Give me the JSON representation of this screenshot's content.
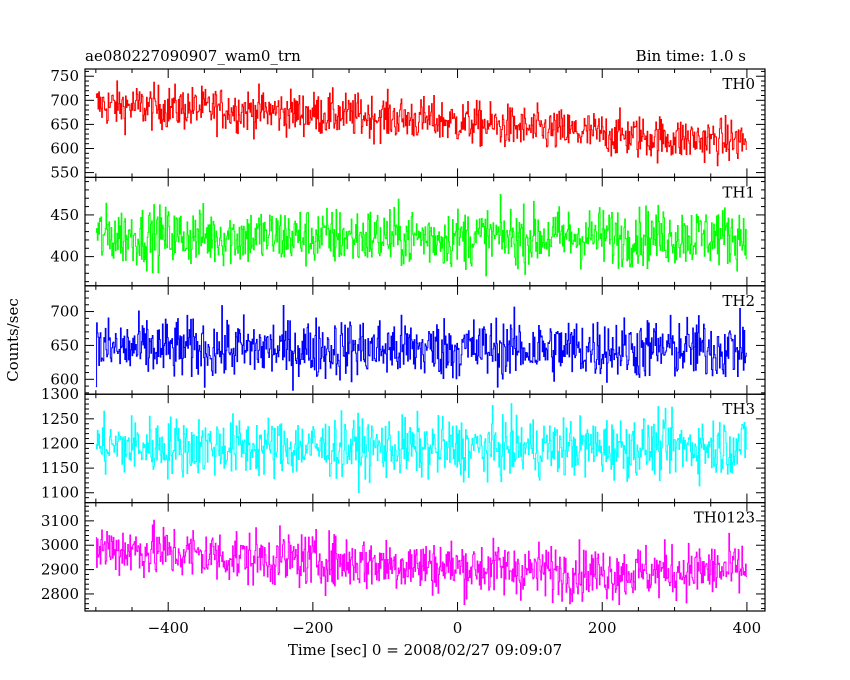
{
  "header": {
    "title": "ae080227090907_wam0_trn",
    "bin_time": "Bin time: 1.0 s"
  },
  "chart_data": {
    "type": "line",
    "title": "ae080227090907_wam0_trn",
    "bin_time": "Bin time: 1.0 s",
    "xlabel": "Time [sec] 0 = 2008/02/27 09:09:07",
    "ylabel": "Counts/sec",
    "xlim": [
      -515,
      425
    ],
    "xticks": [
      -400,
      -200,
      0,
      200,
      400
    ],
    "xtick_labels": [
      "−400",
      "−200",
      "0",
      "200",
      "400"
    ],
    "data_range_x": [
      -500,
      399
    ],
    "panels": [
      {
        "name": "TH0",
        "color": "#ff0000",
        "ylim": [
          540,
          765
        ],
        "yticks": [
          550,
          600,
          650,
          700,
          750
        ],
        "trend": {
          "x": [
            -500,
            -300,
            -100,
            0,
            100,
            300,
            400
          ],
          "y": [
            690,
            680,
            665,
            655,
            640,
            620,
            615
          ]
        },
        "noise_amplitude": 45
      },
      {
        "name": "TH1",
        "color": "#00ff00",
        "ylim": [
          365,
          495
        ],
        "yticks": [
          400,
          450
        ],
        "trend": {
          "x": [
            -500,
            0,
            400
          ],
          "y": [
            425,
            423,
            425
          ]
        },
        "noise_amplitude": 35
      },
      {
        "name": "TH2",
        "color": "#0000ff",
        "ylim": [
          578,
          738
        ],
        "yticks": [
          600,
          650,
          700
        ],
        "trend": {
          "x": [
            -500,
            0,
            400
          ],
          "y": [
            645,
            645,
            645
          ]
        },
        "noise_amplitude": 45
      },
      {
        "name": "TH3",
        "color": "#00ffff",
        "ylim": [
          1080,
          1300
        ],
        "yticks": [
          1100,
          1150,
          1200,
          1250,
          1300
        ],
        "trend": {
          "x": [
            -500,
            0,
            400
          ],
          "y": [
            1195,
            1190,
            1195
          ]
        },
        "noise_amplitude": 60
      },
      {
        "name": "TH0123",
        "color": "#ff00ff",
        "ylim": [
          2730,
          3175
        ],
        "yticks": [
          2800,
          2900,
          3000,
          3100
        ],
        "trend": {
          "x": [
            -500,
            -300,
            -100,
            0,
            200,
            400
          ],
          "y": [
            2990,
            2950,
            2925,
            2910,
            2885,
            2900
          ]
        },
        "noise_amplitude": 110
      }
    ]
  }
}
